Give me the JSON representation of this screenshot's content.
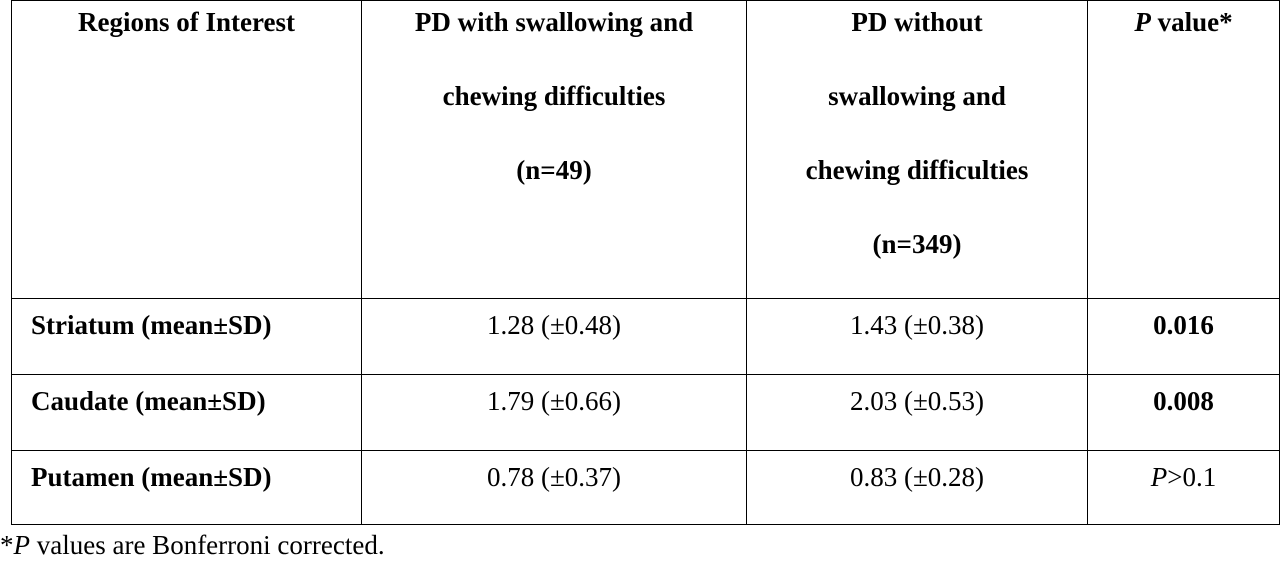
{
  "table": {
    "headers": [
      {
        "lines": [
          "Regions of Interest"
        ]
      },
      {
        "lines": [
          "PD with swallowing  and",
          "chewing difficulties",
          "(n=49)"
        ]
      },
      {
        "lines": [
          "PD without",
          "swallowing  and",
          "chewing difficulties",
          "(n=349)"
        ]
      },
      {
        "italic_prefix": "P",
        "suffix": " value*"
      }
    ],
    "rows": [
      {
        "region": "Striatum (mean±SD)",
        "with": "1.28 (±0.48)",
        "without": "1.43 (±0.38)",
        "p": "0.016",
        "p_bold": true
      },
      {
        "region": "Caudate (mean±SD)",
        "with": "1.79 (±0.66)",
        "without": "2.03 (±0.53)",
        "p": "0.008",
        "p_bold": true
      },
      {
        "region": "Putamen (mean±SD)",
        "with": "0.78 (±0.37)",
        "without": "0.83 (±0.28)",
        "p_italic": "P",
        "p_rest": ">0.1",
        "p_bold": false
      }
    ]
  },
  "footnote": {
    "star": "*",
    "italic": "P",
    "text": " values are Bonferroni corrected."
  }
}
